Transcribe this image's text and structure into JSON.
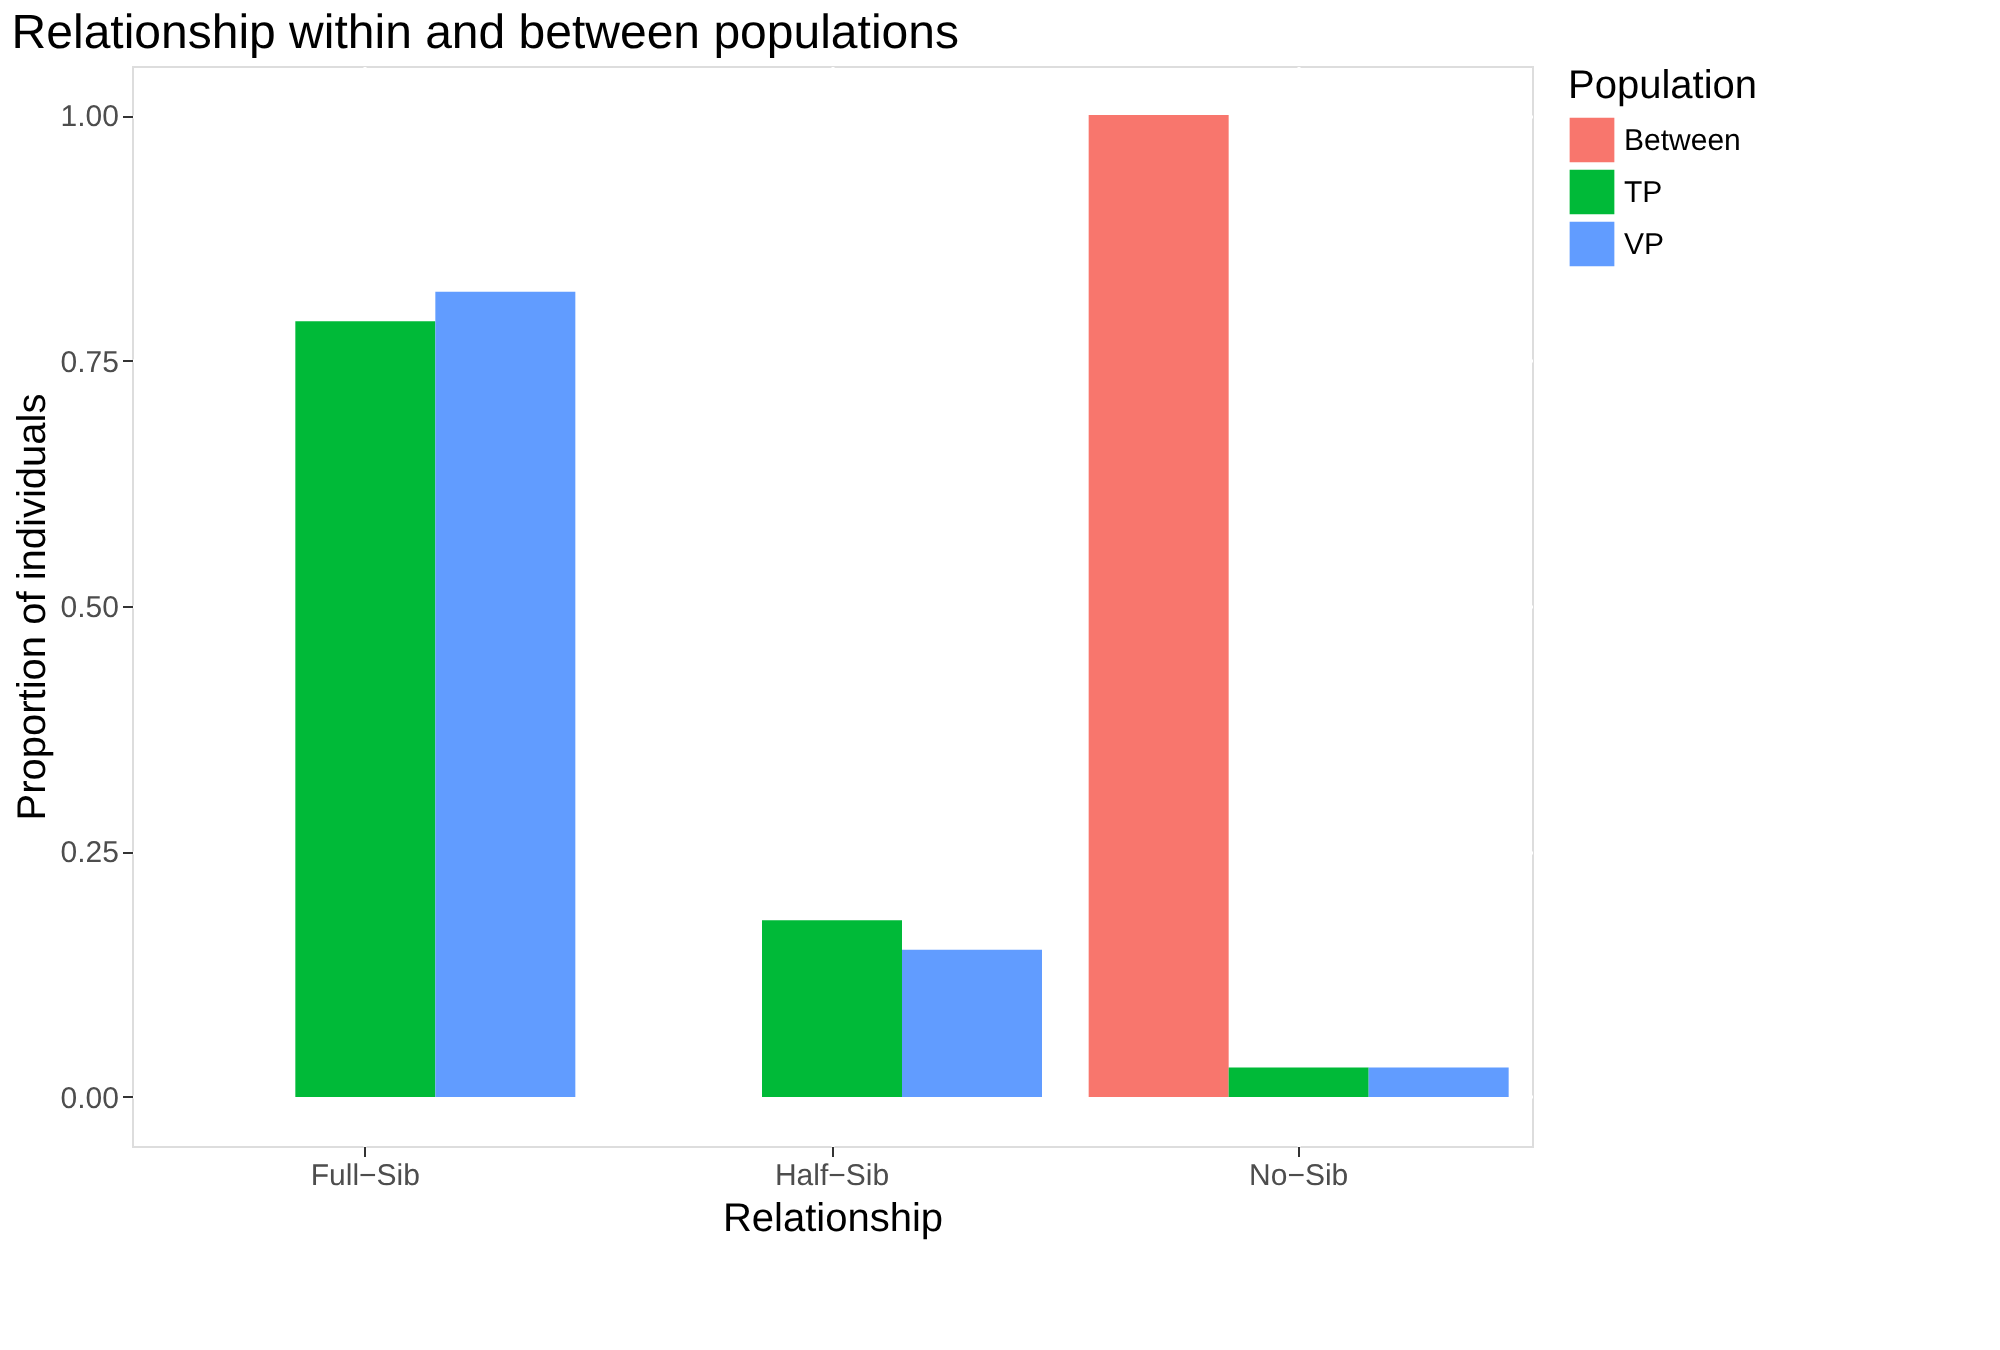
{
  "chart_data": {
    "type": "bar",
    "title": "Relationship within and between populations",
    "xlabel": "Relationship",
    "ylabel": "Proportion of individuals",
    "legend_title": "Population",
    "categories": [
      "Full−Sib",
      "Half−Sib",
      "No−Sib"
    ],
    "series": [
      {
        "name": "Between",
        "color": "#f8766d",
        "values": [
          null,
          null,
          1.0
        ]
      },
      {
        "name": "TP",
        "color": "#00ba38",
        "values": [
          0.79,
          0.18,
          0.03
        ]
      },
      {
        "name": "VP",
        "color": "#619cff",
        "values": [
          0.82,
          0.15,
          0.03
        ]
      }
    ],
    "ylim": [
      -0.05,
      1.05
    ],
    "yticks": [
      {
        "value": 0,
        "label": "0.00"
      },
      {
        "value": 0.25,
        "label": "0.25"
      },
      {
        "value": 0.5,
        "label": "0.50"
      },
      {
        "value": 0.75,
        "label": "0.75"
      },
      {
        "value": 1,
        "label": "1.00"
      }
    ],
    "grid": true,
    "legend": "right"
  }
}
